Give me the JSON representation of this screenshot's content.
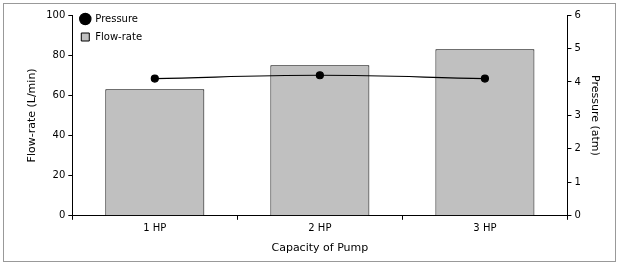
{
  "chart_data": {
    "type": "bar",
    "categories": [
      "1 HP",
      "2 HP",
      "3 HP"
    ],
    "x_label": "Capacity of Pump",
    "y_label": "Flow-rate (L/min)",
    "y2_label": "Pressure (atm)",
    "series": [
      {
        "name": "Flow-rate",
        "type": "bar",
        "color": "#c0c0c0",
        "values": [
          63,
          75,
          83
        ]
      },
      {
        "name": "Pressure",
        "type": "line",
        "color": "#000000",
        "marker": "circle",
        "line_style": "solid",
        "axis": "y2",
        "values": [
          4.1,
          4.2,
          4.1
        ]
      }
    ],
    "ylim": [
      0,
      100
    ],
    "yticks": [
      0,
      20,
      40,
      60,
      80,
      100
    ],
    "y2lim": [
      0,
      6
    ],
    "y2ticks": [
      0,
      1,
      2,
      3,
      4,
      5,
      6
    ],
    "grid": false,
    "legend": "upper left"
  }
}
